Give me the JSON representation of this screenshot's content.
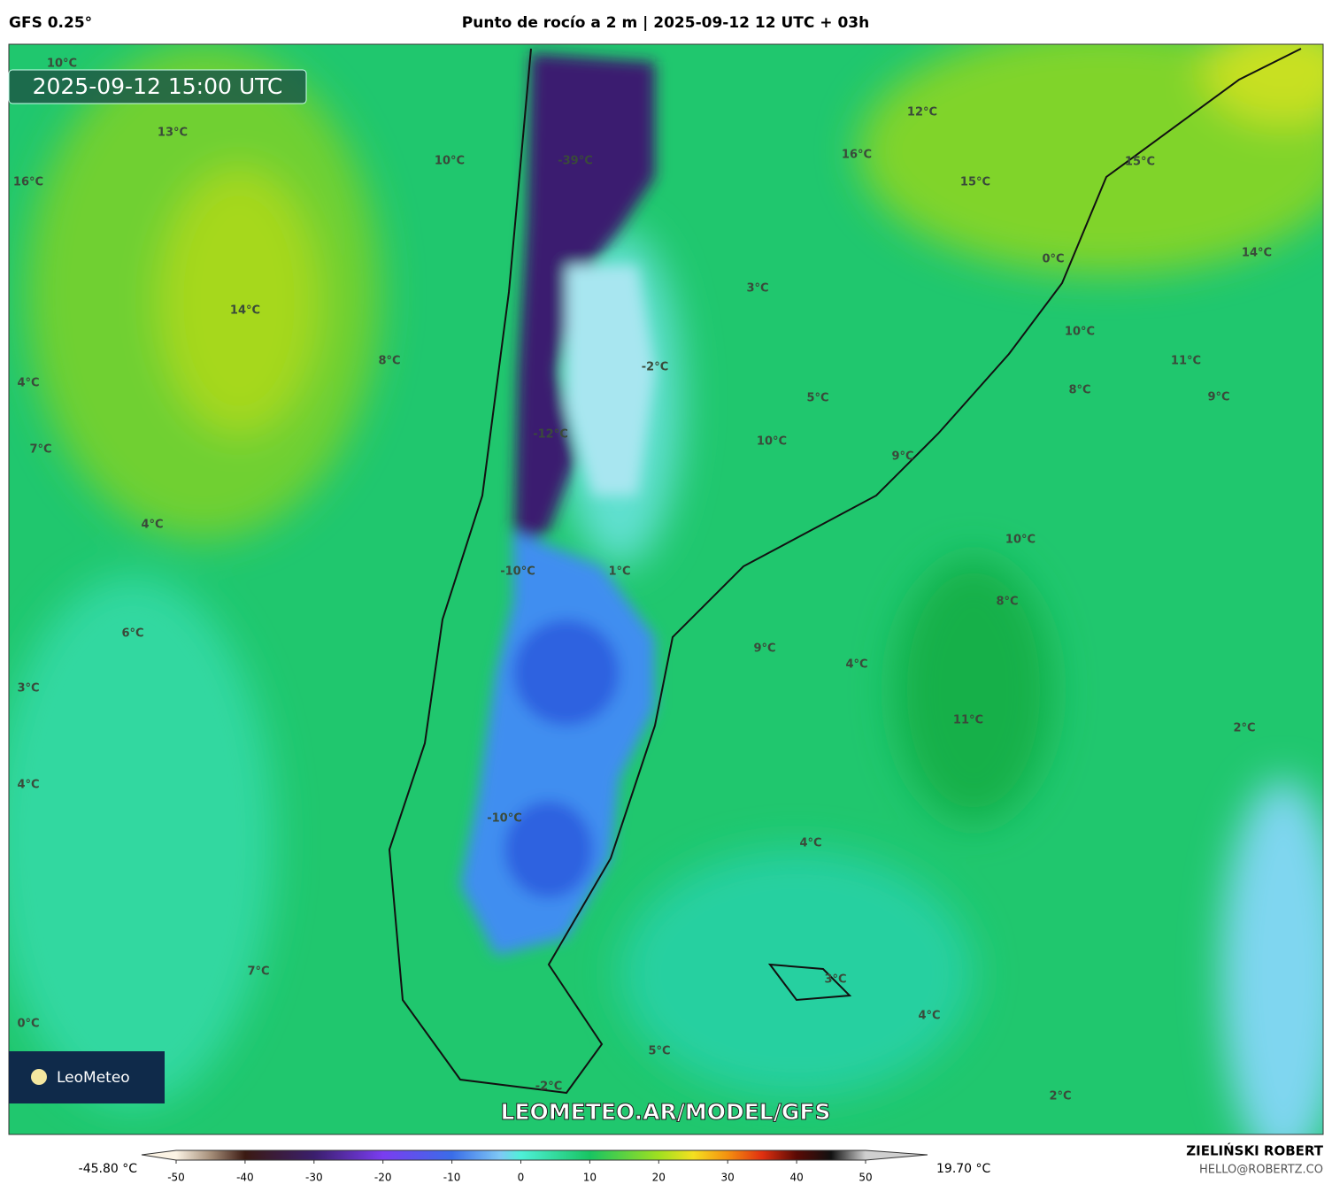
{
  "header": {
    "model": "GFS 0.25°",
    "title": "Punto de rocío a 2 m | 2025-09-12 12 UTC + 03h"
  },
  "map": {
    "valid_time": "2025-09-12 15:00 UTC",
    "watermark": "LEOMETEO.AR/MODEL/GFS",
    "logo": "LeoMeteo",
    "labels": [
      "10°C",
      "13°C",
      "10°C",
      "-39°C",
      "16°C",
      "12°C",
      "16°C",
      "15°C",
      "15°C",
      "0°C",
      "14°C",
      "14°C",
      "3°C",
      "10°C",
      "8°C",
      "-2°C",
      "11°C",
      "4°C",
      "8°C",
      "5°C",
      "9°C",
      "-12°C",
      "10°C",
      "7°C",
      "9°C",
      "4°C",
      "10°C",
      "-10°C",
      "1°C",
      "8°C",
      "6°C",
      "9°C",
      "4°C",
      "3°C",
      "11°C",
      "2°C",
      "4°C",
      "-10°C",
      "4°C",
      "7°C",
      "3°C",
      "4°C",
      "0°C",
      "5°C",
      "-2°C",
      "2°C"
    ]
  },
  "colorbar": {
    "min_label": "-45.80 °C",
    "max_label": "19.70 °C",
    "ticks": [
      -50,
      -40,
      -30,
      -20,
      -10,
      0,
      10,
      20,
      30,
      40,
      50
    ]
  },
  "footer": {
    "author": "ZIELIŃSKI ROBERT",
    "contact": "HELLO@ROBERTZ.CO"
  }
}
